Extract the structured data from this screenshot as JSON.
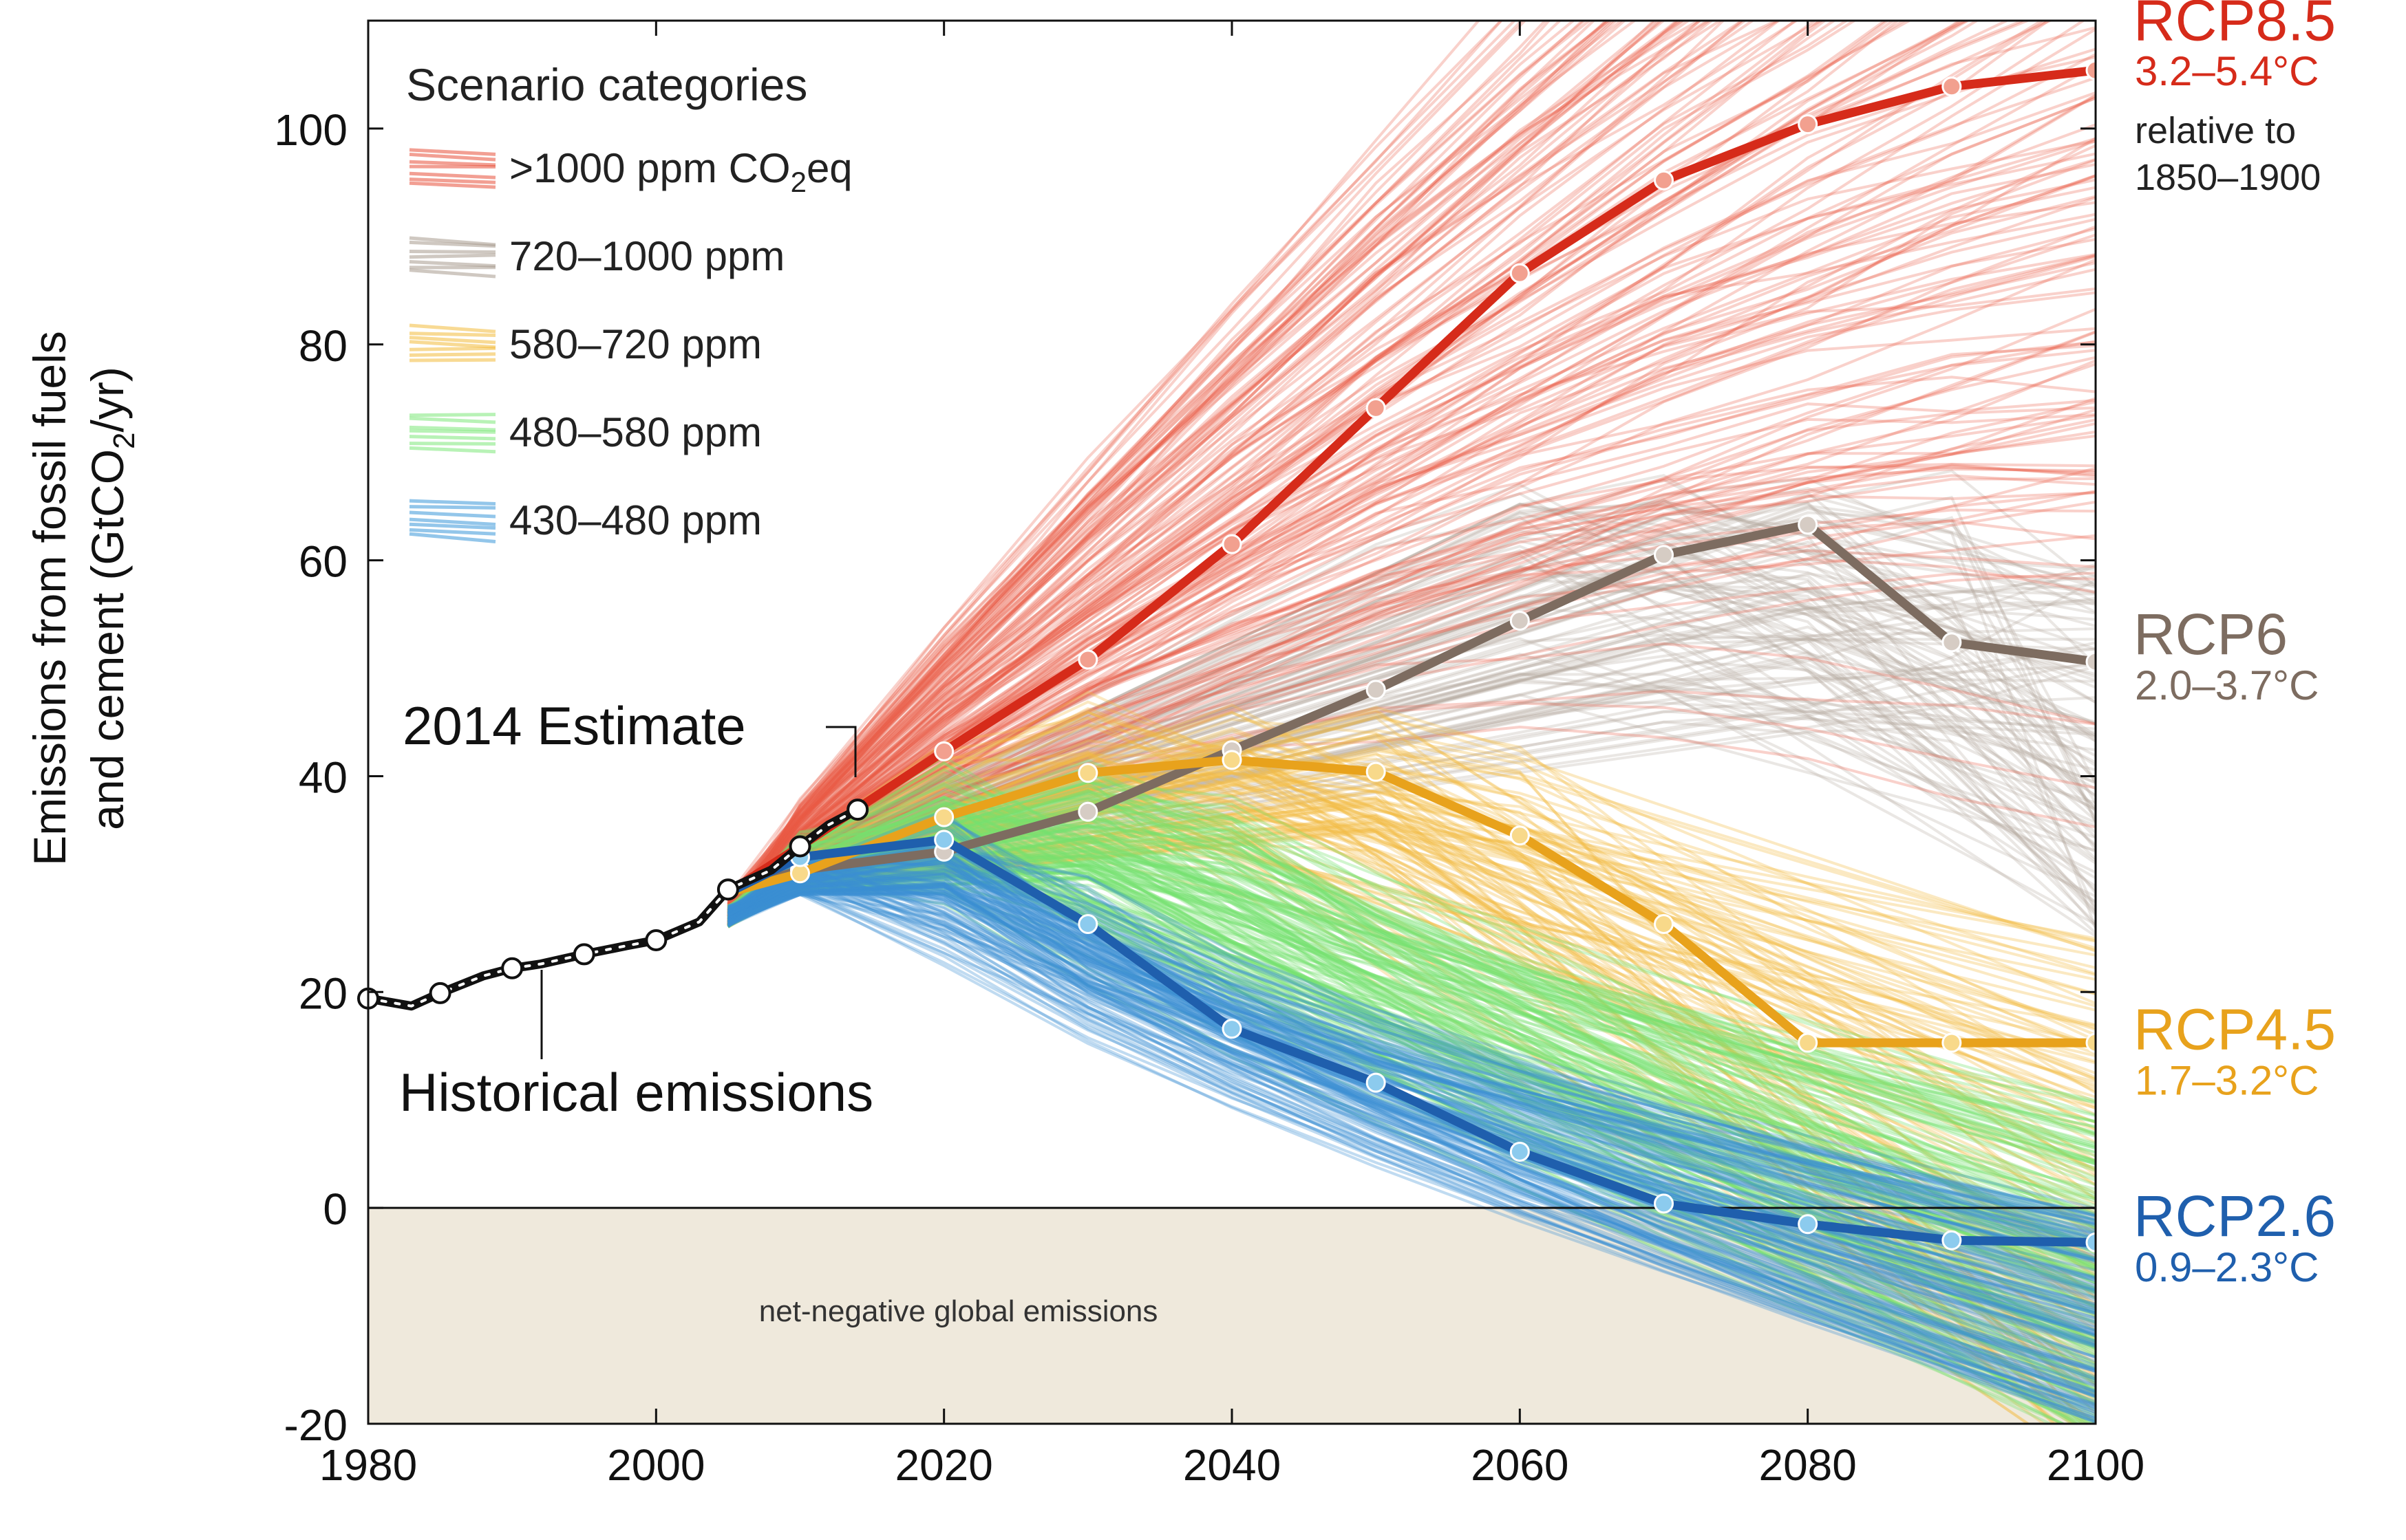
{
  "chart_data": {
    "type": "line",
    "xlim": [
      1980,
      2100
    ],
    "ylim": [
      -20,
      110
    ],
    "x_ticks": [
      1980,
      2000,
      2020,
      2040,
      2060,
      2080,
      2100
    ],
    "y_ticks": [
      -20,
      0,
      20,
      40,
      60,
      80,
      100
    ],
    "ylabel_line1": "Emissions from fossil fuels",
    "ylabel_line2": "and cement (GtCO",
    "ylabel_sub": "2",
    "ylabel_end": "/yr)",
    "legend": {
      "title": "Scenario categories",
      "entries": [
        {
          "label": ">1000 ppm CO",
          "sub": "2",
          "end": "eq",
          "color": "#e8503a"
        },
        {
          "label": "720–1000 ppm",
          "sub": "",
          "end": "",
          "color": "#a89a8e"
        },
        {
          "label": "580–720 ppm",
          "sub": "",
          "end": "",
          "color": "#f2bb3c"
        },
        {
          "label": "480–580 ppm",
          "sub": "",
          "end": "",
          "color": "#7ee87a"
        },
        {
          "label": "430–480 ppm",
          "sub": "",
          "end": "",
          "color": "#3a98d8"
        }
      ]
    },
    "historical": {
      "name": "Historical emissions",
      "estimate_label": "2014 Estimate",
      "x": [
        1980,
        1983,
        1985,
        1988,
        1990,
        1992,
        1995,
        1998,
        2000,
        2003,
        2005,
        2008,
        2010,
        2012,
        2014
      ],
      "y": [
        19.4,
        18.7,
        19.9,
        21.5,
        22.2,
        22.6,
        23.5,
        24.3,
        24.8,
        26.5,
        29.5,
        31.3,
        33.5,
        35.5,
        36.9
      ],
      "markers_x": [
        1980,
        1985,
        1990,
        1995,
        2000,
        2005,
        2010,
        2014
      ]
    },
    "series": [
      {
        "name": "RCP8.5",
        "temp": "3.2–5.4°C",
        "note1": "relative to",
        "note2": "1850–1900",
        "color": "#d62b1a",
        "marker_fill": "#f2a08f",
        "x": [
          2005,
          2010,
          2020,
          2030,
          2040,
          2050,
          2060,
          2070,
          2080,
          2090,
          2100
        ],
        "y": [
          29.2,
          33.5,
          42.3,
          50.8,
          61.5,
          74.1,
          86.6,
          95.2,
          100.4,
          103.9,
          105.4
        ]
      },
      {
        "name": "RCP6",
        "temp": "2.0–3.7°C",
        "color": "#7d6c60",
        "marker_fill": "#d6ccc4",
        "x": [
          2005,
          2010,
          2020,
          2030,
          2040,
          2050,
          2060,
          2070,
          2080,
          2090,
          2100
        ],
        "y": [
          29.2,
          31.3,
          33.0,
          36.7,
          42.4,
          48.0,
          54.4,
          60.5,
          63.3,
          52.4,
          50.6
        ]
      },
      {
        "name": "RCP4.5",
        "temp": "1.7–3.2°C",
        "color": "#e8a21c",
        "marker_fill": "#f8d98a",
        "x": [
          2005,
          2010,
          2020,
          2030,
          2040,
          2050,
          2060,
          2070,
          2080,
          2090,
          2100
        ],
        "y": [
          29.2,
          31.0,
          36.2,
          40.3,
          41.5,
          40.4,
          34.5,
          26.3,
          15.3,
          15.3,
          15.3
        ]
      },
      {
        "name": "RCP2.6",
        "temp": "0.9–2.3°C",
        "color": "#1f5fad",
        "marker_fill": "#8ccbee",
        "x": [
          2005,
          2010,
          2020,
          2030,
          2040,
          2050,
          2060,
          2070,
          2080,
          2090,
          2100
        ],
        "y": [
          29.2,
          32.5,
          34.1,
          26.3,
          16.6,
          11.6,
          5.2,
          0.4,
          -1.5,
          -3.0,
          -3.2
        ]
      }
    ],
    "ensemble_colors": {
      "c1000": "#ea5a44",
      "c720": "#b3a89f",
      "c580": "#f2bc40",
      "c480": "#74e36e",
      "c430": "#3b8fd3"
    },
    "negative_region_label": "net-negative global emissions",
    "negative_region_color": "#efe9dc"
  }
}
